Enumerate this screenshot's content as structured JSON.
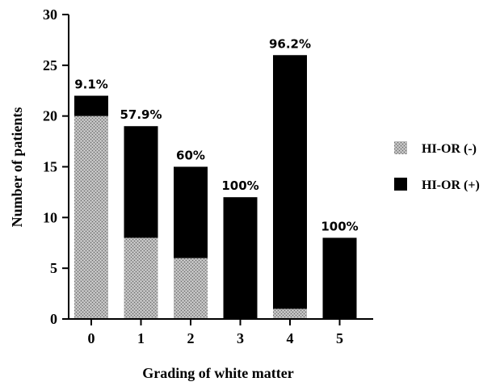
{
  "chart_data": {
    "type": "bar",
    "stacked": true,
    "categories": [
      "0",
      "1",
      "2",
      "3",
      "4",
      "5"
    ],
    "series": [
      {
        "name": "HI-OR (-)",
        "values": [
          20,
          8,
          6,
          0,
          1,
          0
        ],
        "color": "#a8a8a8",
        "pattern": "stipple"
      },
      {
        "name": "HI-OR (+)",
        "values": [
          2,
          11,
          9,
          12,
          25,
          8
        ],
        "color": "#000000"
      }
    ],
    "bar_labels": [
      "9.1%",
      "57.9%",
      "60%",
      "100%",
      "96.2%",
      "100%"
    ],
    "xlabel": "Grading of white matter",
    "ylabel": "Number of patients",
    "ylim": [
      0,
      30
    ],
    "yticks": [
      "0",
      "5",
      "10",
      "15",
      "20",
      "25",
      "30"
    ],
    "grid": false,
    "legend_position": "right"
  }
}
